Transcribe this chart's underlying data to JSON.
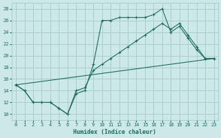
{
  "xlabel": "Humidex (Indice chaleur)",
  "bg_color": "#cce8e8",
  "grid_color": "#aacccc",
  "line_color": "#1a6b5a",
  "xlim": [
    -0.5,
    23.5
  ],
  "ylim": [
    9,
    29
  ],
  "xticks": [
    0,
    1,
    2,
    3,
    4,
    5,
    6,
    7,
    8,
    9,
    10,
    11,
    12,
    13,
    14,
    15,
    16,
    17,
    18,
    19,
    20,
    21,
    22,
    23
  ],
  "yticks": [
    10,
    12,
    14,
    16,
    18,
    20,
    22,
    24,
    26,
    28
  ],
  "line1_x": [
    0,
    1,
    2,
    3,
    4,
    5,
    6,
    7,
    8,
    9,
    10,
    11,
    12,
    13,
    14,
    15,
    16,
    17,
    18,
    19,
    20,
    21,
    22,
    23
  ],
  "line1_y": [
    15,
    14,
    12,
    12,
    12,
    11,
    10,
    13.5,
    14,
    18.5,
    26,
    26,
    26.5,
    26.5,
    26.5,
    26.5,
    27,
    28,
    24,
    25,
    23,
    21,
    19.5,
    19.5
  ],
  "line2_x": [
    0,
    1,
    2,
    3,
    4,
    5,
    6,
    7,
    8,
    9,
    10,
    11,
    12,
    13,
    14,
    15,
    16,
    17,
    18,
    19,
    20,
    21,
    22,
    23
  ],
  "line2_y": [
    15,
    14,
    12,
    12,
    12,
    11,
    10,
    14,
    14.5,
    17.5,
    18.5,
    19.5,
    20.5,
    21.5,
    22.5,
    23.5,
    24.5,
    25.5,
    24.5,
    25.5,
    23.5,
    21.5,
    19.5,
    19.5
  ],
  "line3_x": [
    0,
    23
  ],
  "line3_y": [
    15,
    19.5
  ]
}
